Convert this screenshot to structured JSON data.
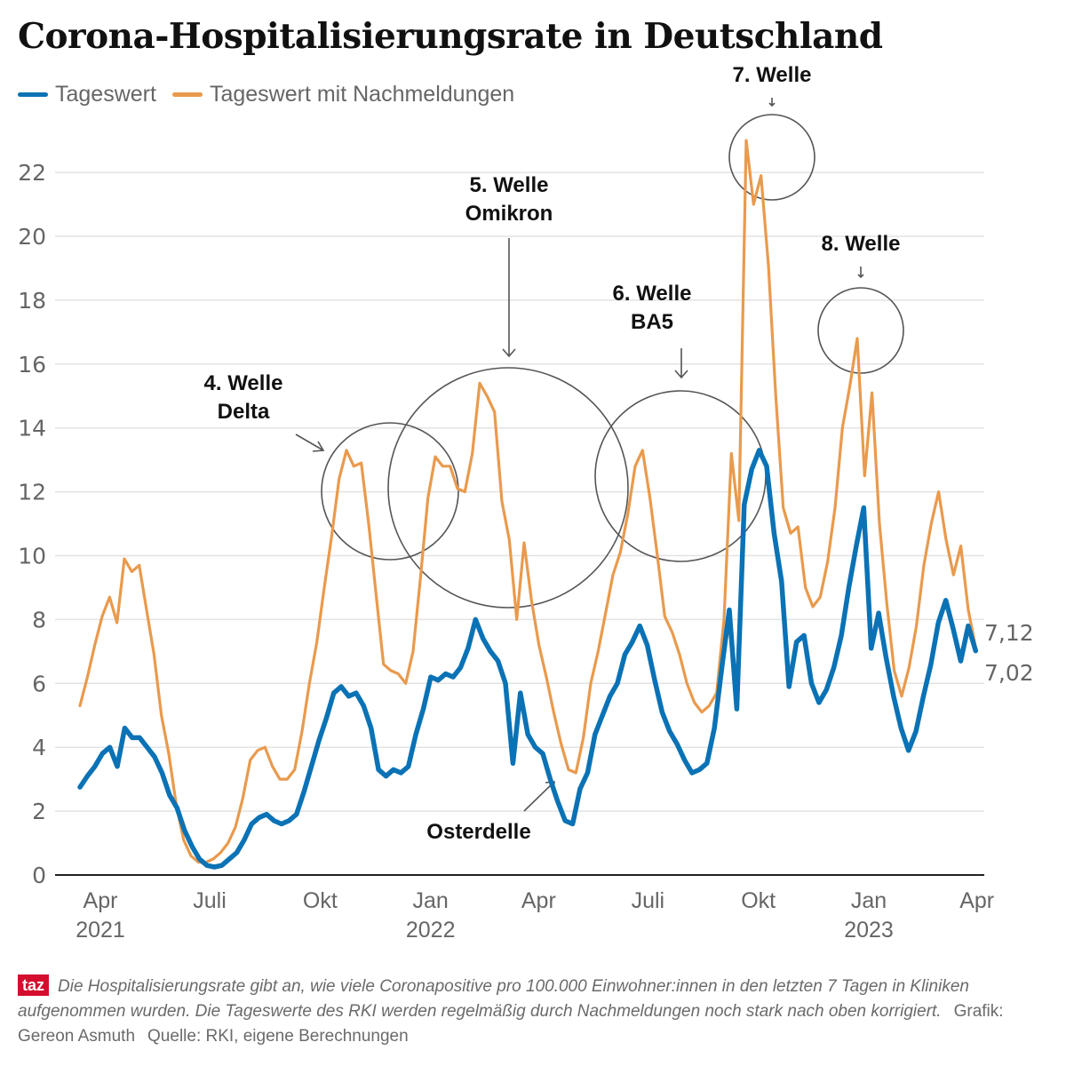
{
  "title": "Corona-Hospitalisierungsrate in Deutschland",
  "legend": [
    {
      "label": "Tageswert",
      "color": "#0a72b5"
    },
    {
      "label": "Tageswert mit Nachmeldungen",
      "color": "#e99a4d"
    }
  ],
  "chart_data": {
    "type": "line",
    "title": "Corona-Hospitalisierungsrate in Deutschland",
    "xlabel": "",
    "ylabel": "",
    "ylim": [
      0,
      23
    ],
    "yticks": [
      0,
      2,
      4,
      6,
      8,
      10,
      12,
      14,
      16,
      18,
      20,
      22
    ],
    "grid": true,
    "legend_position": "top-left",
    "x_start": "2021-03-15",
    "x_end": "2023-03-31",
    "x_step": "week",
    "xticks": [
      {
        "label": "Apr",
        "year": "2021",
        "date": "2021-04-01"
      },
      {
        "label": "Juli",
        "year": "",
        "date": "2021-07-01"
      },
      {
        "label": "Okt",
        "year": "",
        "date": "2021-10-01"
      },
      {
        "label": "Jan",
        "year": "2022",
        "date": "2022-01-01"
      },
      {
        "label": "Apr",
        "year": "",
        "date": "2022-04-01"
      },
      {
        "label": "Juli",
        "year": "",
        "date": "2022-07-01"
      },
      {
        "label": "Okt",
        "year": "",
        "date": "2022-10-01"
      },
      {
        "label": "Jan",
        "year": "2023",
        "date": "2023-01-01"
      },
      {
        "label": "Apr",
        "year": "",
        "date": "2023-04-01"
      }
    ],
    "series": [
      {
        "name": "Tageswert mit Nachmeldungen",
        "color": "#e99a4d",
        "values": [
          5.3,
          6.2,
          7.2,
          8.1,
          8.7,
          7.9,
          9.9,
          9.5,
          9.7,
          8.3,
          6.9,
          5.0,
          3.8,
          2.2,
          1.1,
          0.6,
          0.4,
          0.4,
          0.5,
          0.7,
          1.0,
          1.5,
          2.4,
          3.6,
          3.9,
          4.0,
          3.4,
          3.0,
          3.0,
          3.3,
          4.5,
          6.0,
          7.3,
          9.0,
          10.6,
          12.4,
          13.3,
          12.8,
          12.9,
          11.0,
          8.8,
          6.6,
          6.4,
          6.3,
          6.0,
          7.0,
          9.3,
          11.8,
          13.1,
          12.8,
          12.8,
          12.1,
          12.0,
          13.2,
          15.4,
          15.0,
          14.5,
          11.7,
          10.5,
          8.0,
          10.4,
          8.6,
          7.2,
          6.2,
          5.1,
          4.1,
          3.3,
          3.2,
          4.3,
          6.0,
          7.0,
          8.2,
          9.4,
          10.1,
          11.3,
          12.8,
          13.3,
          11.8,
          10.0,
          8.1,
          7.6,
          6.9,
          6.0,
          5.4,
          5.1,
          5.3,
          5.7,
          8.0,
          13.2,
          11.1,
          23.0,
          21.0,
          21.9,
          19.1,
          15.0,
          11.5,
          10.7,
          10.9,
          9.0,
          8.4,
          8.7,
          9.8,
          11.5,
          14.0,
          15.3,
          16.8,
          12.5,
          15.1,
          11.0,
          8.5,
          6.4,
          5.6,
          6.5,
          7.8,
          9.7,
          11.0,
          12.0,
          10.5,
          9.4,
          10.3,
          8.3,
          7.12
        ]
      },
      {
        "name": "Tageswert",
        "color": "#0a72b5",
        "values": [
          2.75,
          3.1,
          3.4,
          3.8,
          4.0,
          3.4,
          4.6,
          4.3,
          4.3,
          4.0,
          3.7,
          3.2,
          2.5,
          2.1,
          1.4,
          0.9,
          0.5,
          0.3,
          0.25,
          0.3,
          0.5,
          0.7,
          1.1,
          1.6,
          1.8,
          1.9,
          1.7,
          1.6,
          1.7,
          1.9,
          2.6,
          3.4,
          4.2,
          4.9,
          5.7,
          5.9,
          5.6,
          5.7,
          5.3,
          4.6,
          3.3,
          3.1,
          3.3,
          3.2,
          3.4,
          4.4,
          5.2,
          6.2,
          6.1,
          6.3,
          6.2,
          6.5,
          7.1,
          8.0,
          7.4,
          7.0,
          6.7,
          6.0,
          3.5,
          5.7,
          4.4,
          4.0,
          3.8,
          3.0,
          2.3,
          1.7,
          1.6,
          2.7,
          3.2,
          4.4,
          5.0,
          5.6,
          6.0,
          6.9,
          7.3,
          7.8,
          7.2,
          6.1,
          5.1,
          4.5,
          4.1,
          3.6,
          3.2,
          3.3,
          3.5,
          4.6,
          6.5,
          8.3,
          5.2,
          11.6,
          12.7,
          13.3,
          12.8,
          10.7,
          9.2,
          5.9,
          7.3,
          7.5,
          6.0,
          5.4,
          5.8,
          6.5,
          7.5,
          9.0,
          10.3,
          11.5,
          7.1,
          8.2,
          6.8,
          5.6,
          4.6,
          3.9,
          4.5,
          5.6,
          6.6,
          7.9,
          8.6,
          7.7,
          6.7,
          7.8,
          7.02
        ]
      }
    ],
    "end_labels": [
      "7,12",
      "7,02"
    ],
    "annotations": [
      {
        "text": [
          "4. Welle",
          "Delta"
        ],
        "date": "2021-11-25",
        "value": 12.0
      },
      {
        "text": [
          "5. Welle",
          "Omikron"
        ],
        "date": "2022-03-01",
        "value": 13.3
      },
      {
        "text": [
          "6. Welle",
          "BA5"
        ],
        "date": "2022-07-20",
        "value": 12.3
      },
      {
        "text": [
          "7. Welle"
        ],
        "date": "2022-10-20",
        "value": 22.5
      },
      {
        "text": [
          "8. Welle"
        ],
        "date": "2022-12-25",
        "value": 17.0
      },
      {
        "text": [
          "Osterdelle"
        ],
        "date": "2022-04-18",
        "value": 3.0
      }
    ]
  },
  "footer": {
    "logo": "taz",
    "note": "Die Hospitalisierungsrate gibt an, wie viele Coronapositive pro 100.000 Einwohner:innen in den letzten 7 Tagen in Kliniken aufgenommen wurden. Die Tageswerte des RKI werden regelmäßig durch Nachmeldungen noch stark nach oben korrigiert.",
    "grafik": "Grafik: Gereon Asmuth",
    "quelle": "Quelle: RKI, eigene Berechnungen"
  }
}
